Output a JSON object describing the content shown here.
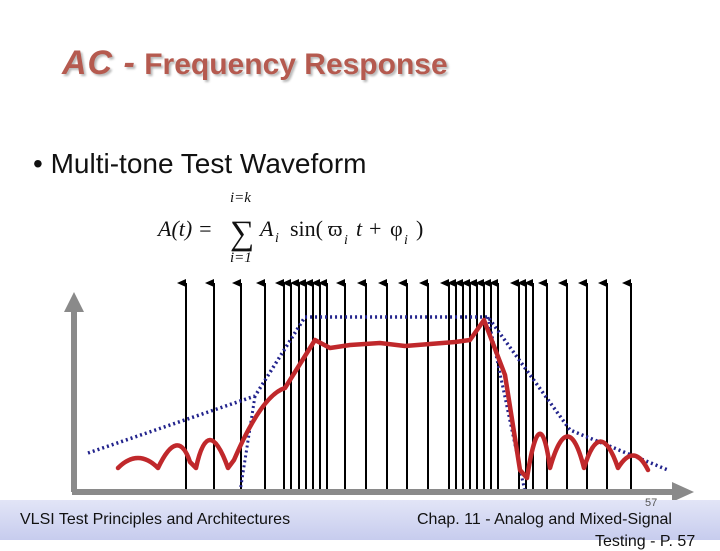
{
  "slide": {
    "title_ac": "AC -",
    "title_rest": " Frequency Response",
    "bullet_marker": "•",
    "bullet_text": "Multi-tone Test Waveform"
  },
  "formula": {
    "upper_limit": "i=k",
    "lower_limit": "i=1",
    "lhs": "A(t) =",
    "sigma": "∑",
    "term_A": "A",
    "term_i": "i",
    "sin_open": "sin(",
    "omega": "ϖ",
    "t_plus": "t +",
    "phi": "φ",
    "close": ")"
  },
  "footer": {
    "left": "VLSI Test Principles and Architectures",
    "right": "Chap. 11 - Analog and Mixed-Signal",
    "right2": "Testing - P. 57",
    "page_number": "57"
  },
  "colors": {
    "title": "#b55a4f",
    "response_curve": "#c0282b",
    "envelope_dotted": "#22238c",
    "tone_arrows": "#000000",
    "footer_bg": "#d4d8f2"
  }
}
